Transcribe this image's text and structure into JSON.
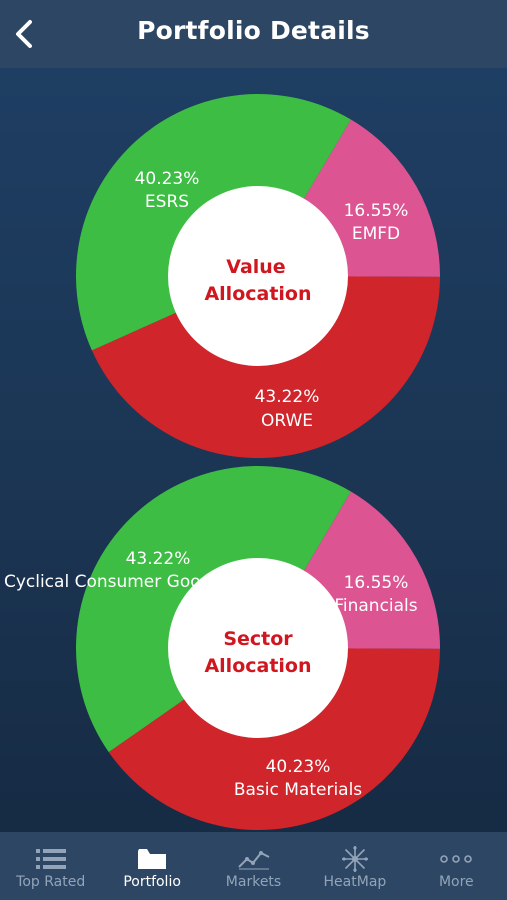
{
  "header": {
    "title": "Portfolio Details"
  },
  "charts": [
    {
      "center_line1": "Value",
      "center_line2": "Allocation",
      "slices": [
        {
          "pct": "16.55%",
          "name": "EMFD",
          "value": 16.55,
          "color": "#dc5592"
        },
        {
          "pct": "43.22%",
          "name": "ORWE",
          "value": 43.22,
          "color": "#d0252b"
        },
        {
          "pct": "40.23%",
          "name": "ESRS",
          "value": 40.23,
          "color": "#3dbd43"
        }
      ]
    },
    {
      "center_line1": "Sector",
      "center_line2": "Allocation",
      "slices": [
        {
          "pct": "16.55%",
          "name": "Financials",
          "value": 16.55,
          "color": "#dc5592"
        },
        {
          "pct": "40.23%",
          "name": "Basic Materials",
          "value": 40.23,
          "color": "#d0252b"
        },
        {
          "pct": "43.22%",
          "name": "Cyclical Consumer Goods & Services",
          "value": 43.22,
          "color": "#3dbd43"
        }
      ]
    }
  ],
  "tabs": [
    {
      "label": "Top Rated",
      "icon": "list-icon",
      "active": false
    },
    {
      "label": "Portfolio",
      "icon": "folder-icon",
      "active": true
    },
    {
      "label": "Markets",
      "icon": "line-chart-icon",
      "active": false
    },
    {
      "label": "HeatMap",
      "icon": "heatmap-icon",
      "active": false
    },
    {
      "label": "More",
      "icon": "more-dots-icon",
      "active": false
    }
  ],
  "colors": {
    "header_bg": "#2c4664",
    "tab_active": "#ffffff",
    "tab_inactive": "#93a4b8",
    "center_text": "#d0161e"
  }
}
